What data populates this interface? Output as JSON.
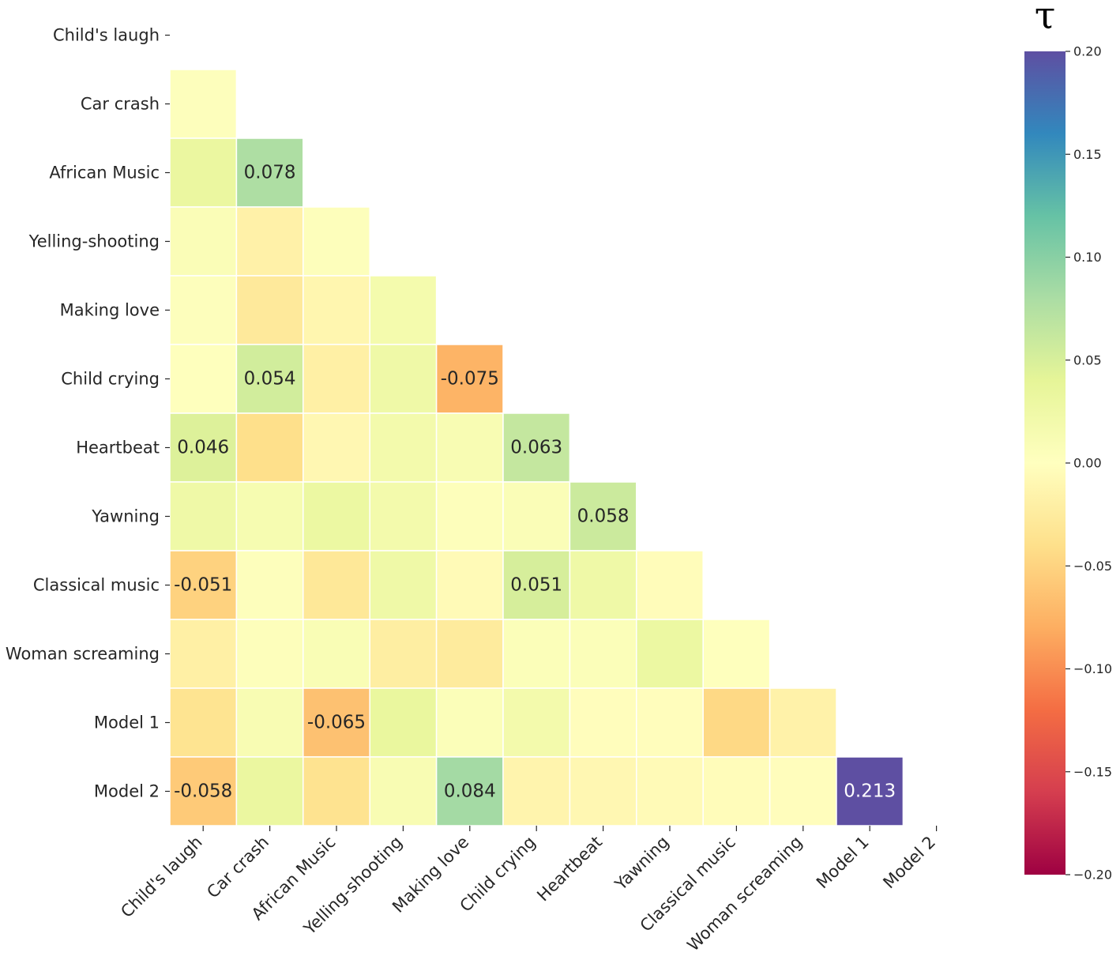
{
  "chart_data": {
    "type": "heatmap",
    "title": "",
    "colorbar_title": "τ",
    "mask": "upper-triangle-including-diagonal",
    "labels": [
      "Child's laugh",
      "Car crash",
      "African Music",
      "Yelling-shooting",
      "Making love",
      "Child crying",
      "Heartbeat",
      "Yawning",
      "Classical music",
      "Woman screaming",
      "Model 1",
      "Model 2"
    ],
    "values": [
      [
        null,
        null,
        null,
        null,
        null,
        null,
        null,
        null,
        null,
        null,
        null,
        null
      ],
      [
        0.003,
        null,
        null,
        null,
        null,
        null,
        null,
        null,
        null,
        null,
        null,
        null
      ],
      [
        0.032,
        0.078,
        null,
        null,
        null,
        null,
        null,
        null,
        null,
        null,
        null,
        null
      ],
      [
        0.008,
        -0.018,
        0.004,
        null,
        null,
        null,
        null,
        null,
        null,
        null,
        null,
        null
      ],
      [
        0.003,
        -0.028,
        -0.012,
        0.018,
        null,
        null,
        null,
        null,
        null,
        null,
        null,
        null
      ],
      [
        0.002,
        0.054,
        -0.02,
        0.025,
        -0.075,
        null,
        null,
        null,
        null,
        null,
        null,
        null
      ],
      [
        0.046,
        -0.04,
        -0.01,
        0.02,
        0.012,
        0.063,
        null,
        null,
        null,
        null,
        null,
        null
      ],
      [
        0.025,
        0.014,
        0.03,
        0.02,
        0.004,
        0.008,
        0.058,
        null,
        null,
        null,
        null,
        null
      ],
      [
        -0.051,
        0.003,
        -0.03,
        0.025,
        -0.006,
        0.051,
        0.025,
        -0.004,
        null,
        null,
        null,
        null
      ],
      [
        -0.02,
        0.004,
        0.01,
        -0.022,
        -0.026,
        0.006,
        0.006,
        0.03,
        0.002,
        null,
        null,
        null
      ],
      [
        -0.035,
        0.012,
        -0.065,
        0.034,
        0.006,
        0.02,
        -0.002,
        -0.002,
        -0.046,
        -0.017,
        null,
        null
      ],
      [
        -0.058,
        0.032,
        -0.036,
        0.012,
        0.084,
        -0.014,
        -0.01,
        -0.006,
        -0.004,
        -0.002,
        0.213,
        null
      ]
    ],
    "annotations": [
      {
        "row": 2,
        "col": 1,
        "text": "0.078"
      },
      {
        "row": 5,
        "col": 1,
        "text": "0.054"
      },
      {
        "row": 5,
        "col": 4,
        "text": "-0.075"
      },
      {
        "row": 6,
        "col": 0,
        "text": "0.046"
      },
      {
        "row": 6,
        "col": 5,
        "text": "0.063"
      },
      {
        "row": 7,
        "col": 6,
        "text": "0.058"
      },
      {
        "row": 8,
        "col": 0,
        "text": "-0.051"
      },
      {
        "row": 8,
        "col": 5,
        "text": "0.051"
      },
      {
        "row": 10,
        "col": 2,
        "text": "-0.065"
      },
      {
        "row": 11,
        "col": 0,
        "text": "-0.058"
      },
      {
        "row": 11,
        "col": 4,
        "text": "0.084"
      },
      {
        "row": 11,
        "col": 10,
        "text": "0.213"
      }
    ],
    "colormap": "Spectral",
    "vmin": -0.2,
    "vmax": 0.2,
    "colorbar_ticks": [
      "0.20",
      "0.15",
      "0.10",
      "0.05",
      "0.00",
      "−0.05",
      "−0.10",
      "−0.15",
      "−0.20"
    ],
    "colorbar_tick_values": [
      0.2,
      0.15,
      0.1,
      0.05,
      0.0,
      -0.05,
      -0.1,
      -0.15,
      -0.2
    ],
    "xlabel": "",
    "ylabel": ""
  }
}
